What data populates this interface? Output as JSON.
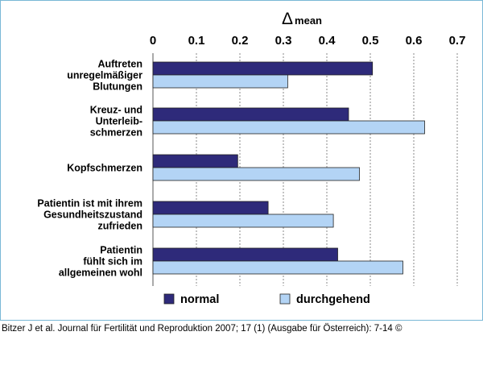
{
  "chart_data": {
    "type": "bar",
    "orientation": "horizontal",
    "axis_title": {
      "symbol": "Δ",
      "text": "mean"
    },
    "xlim": [
      0,
      0.7
    ],
    "ticks": [
      "0",
      "0.1",
      "0.2",
      "0.3",
      "0.4",
      "0.5",
      "0.6",
      "0.7"
    ],
    "grid": "vertical dashed",
    "legend_position": "bottom",
    "categories": [
      {
        "lines": [
          "Auftreten",
          "unregelmäßiger",
          "Blutungen"
        ]
      },
      {
        "lines": [
          "Kreuz- und",
          "Unterleib-",
          "schmerzen"
        ]
      },
      {
        "lines": [
          "Kopfschmerzen"
        ]
      },
      {
        "lines": [
          "Patientin ist mit ihrem",
          "Gesundheitszustand",
          "zufrieden"
        ]
      },
      {
        "lines": [
          "Patientin",
          "fühlt sich im",
          "allgemeinen wohl"
        ]
      }
    ],
    "series": [
      {
        "name": "normal",
        "color": "#2e2a7a",
        "values": [
          0.505,
          0.45,
          0.195,
          0.265,
          0.425
        ]
      },
      {
        "name": "durchgehend",
        "color": "#b3d4f5",
        "values": [
          0.31,
          0.625,
          0.475,
          0.415,
          0.575
        ]
      }
    ]
  },
  "citation": "Bitzer J et al. Journal für Fertilität und Reproduktion 2007; 17 (1) (Ausgabe für Österreich): 7-14 ©"
}
